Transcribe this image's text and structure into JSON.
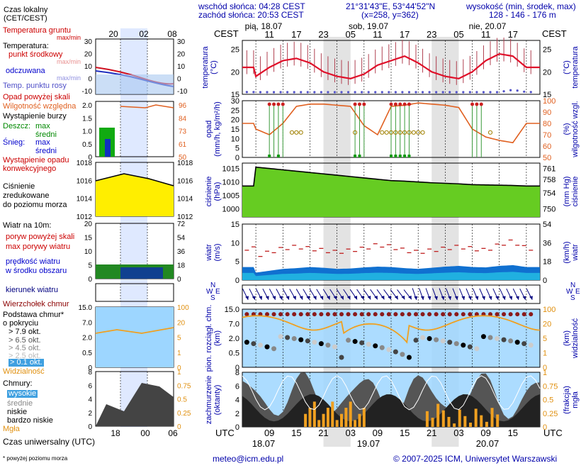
{
  "header": {
    "sunrise": "wschód słońca: 04:28 CEST",
    "sunset": "zachód słońca: 20:53 CEST",
    "coords": "21°31'43\"E, 53°44'52\"N",
    "grid": "(x=258, y=362)",
    "altitude_label": "wysokość (min, środek, max)",
    "altitude_values": "128 - 146 - 176 m"
  },
  "legend": {
    "local_time": "Czas lokalny\n(CET/CEST)",
    "local_ticks": [
      "20",
      "02",
      "08"
    ],
    "temp_ground": "Temperatura gruntu",
    "temp_ground_sub": "max/min",
    "temp": "Temperatura:",
    "temp_mid": "punkt środkowy",
    "temp_minmax": "max/min",
    "temp_felt": "odczuwana",
    "temp_felt_minmax": "max/min",
    "dew": "Temp. punktu rosy",
    "precip_over": "Opad powyżej skali",
    "humidity": "Wilgotność względna",
    "storm": "Wystąpienie burzy",
    "rain": "Deszcz:",
    "rain_max": "max",
    "rain_mid": "średni",
    "snow": "Śnieg:",
    "snow_max": "max",
    "snow_mid": "średni",
    "convective": "Wystąpienie opadu\nkonwekcyjnego",
    "pressure": "Ciśnienie\nzredukowane\ndo poziomu morza",
    "wind_title": "Wiatr na 10m:",
    "gust_over": "poryw powyżej skali",
    "gust_max": "max porywy wiatru",
    "wind_speed": "prędkość wiatru\nw środku obszaru",
    "wind_dir": "kierunek wiatru",
    "cloud_top": "Wierzchołek chmur",
    "cloud_base": "Podstawa chmur*\no pokryciu",
    "oct1": "> 7.9 okt.",
    "oct2": "> 6.5 okt.",
    "oct3": "> 4.5 okt.",
    "oct4": "> 2.5 okt.",
    "oct5": "> 0.1 okt.",
    "visibility": "Widzialność",
    "clouds": "Chmury:",
    "cl_high": "wysokie",
    "cl_mid": "średnie",
    "cl_low": "niskie",
    "cl_vlow": "bardzo niskie",
    "fog": "Mgła",
    "utc": "Czas uniwersalny (UTC)",
    "utc_ticks": [
      "18",
      "00",
      "06"
    ],
    "footnote": "* powyżej poziomu morza",
    "t_axis_l": [
      "30",
      "20",
      "10",
      "0",
      "-10"
    ],
    "t_axis_r": [
      "30",
      "20",
      "10",
      "0",
      "-10"
    ],
    "p_axis_l": [
      "2.0",
      "1.5",
      "1.0",
      "0.5",
      "0"
    ],
    "h_axis_r": [
      "96",
      "84",
      "73",
      "61",
      "50"
    ],
    "pr_axis_l": [
      "1018",
      "1016",
      "1014",
      "1012"
    ],
    "pr_axis_r": [
      "1018",
      "1016",
      "1014",
      "1012"
    ],
    "w_axis_l": [
      "20",
      "15",
      "10",
      "5",
      "0"
    ],
    "w_axis_r": [
      "72",
      "54",
      "36",
      "18",
      "0"
    ],
    "cb_axis_l": [
      "15.0",
      "7.0",
      "2.0",
      "0.5",
      "0"
    ],
    "cb_axis_r": [
      "100",
      "20",
      "5",
      "1",
      "0"
    ],
    "cl_axis_l": [
      "8",
      "6",
      "4",
      "2",
      "0"
    ],
    "cl_axis_r": [
      "1",
      "0.75",
      "0.5",
      "0.25",
      "0"
    ]
  },
  "main": {
    "days": [
      "pią, 18.07",
      "sob, 19.07",
      "nie, 20.07"
    ],
    "cest_label": "CEST",
    "cest_ticks": [
      "11",
      "17",
      "23",
      "05",
      "11",
      "17",
      "23",
      "05",
      "11",
      "17"
    ],
    "utc_label": "UTC",
    "utc_ticks": [
      "09",
      "15",
      "21",
      "03",
      "09",
      "15",
      "21",
      "03",
      "09",
      "15"
    ],
    "utc_dates": [
      "18.07",
      "19.07",
      "20.07"
    ],
    "temp_ylabel": "temperatura\n(°C)",
    "temp_yl": [
      "25",
      "20",
      "15"
    ],
    "temp_yr": [
      "25",
      "20",
      "15"
    ],
    "temp_ylabel_r": "(°C)\ntemperatura",
    "precip_ylabel": "opad\n(mm/h, kg/m²/h)",
    "precip_yl": [
      "30",
      "25",
      "20",
      "15",
      "10",
      "5",
      "0"
    ],
    "hum_yr": [
      "100",
      "90",
      "80",
      "70",
      "60",
      "50"
    ],
    "hum_ylabel": "(%)\nwilgotność wzgl.",
    "press_ylabel": "ciśnienie\n(hPa)",
    "press_yl": [
      "1015",
      "1010",
      "1005",
      "1000"
    ],
    "press_yr": [
      "761",
      "758",
      "754",
      "750"
    ],
    "press_ylabel_r": "(mm Hg)\nciśnienie",
    "wind_ylabel": "wiatr\n(m/s)",
    "wind_yl": [
      "15",
      "10",
      "5",
      "0"
    ],
    "wind_yr": [
      "54",
      "36",
      "18",
      "0"
    ],
    "wind_ylabel_r": "(km/h)\nwiatr",
    "compass": [
      "N",
      "W",
      "E",
      "S"
    ],
    "cb_ylabel": "pion. rozciągł. chm.\n(km)",
    "cb_yl": [
      "15.0",
      "7.0",
      "2.0",
      "0.5",
      "0"
    ],
    "cb_yr": [
      "100",
      "20",
      "5",
      "1",
      "0"
    ],
    "cb_ylabel_r": "(km)\nwidzialność",
    "cl_ylabel": "zachmurzenie\n(oktanty)",
    "cl_yl": [
      "8",
      "6",
      "4",
      "2",
      "0"
    ],
    "cl_yr": [
      "1",
      "0.75",
      "0.5",
      "0.25",
      "0"
    ],
    "cl_ylabel_r": "(frakcja)\nmgła"
  },
  "footer": {
    "email": "meteo@icm.edu.pl",
    "copyright": "© 2007-2025 ICM, Uniwersytet Warszawski"
  },
  "colors": {
    "temperature": "#e0102a",
    "dew_point": "#5050c8",
    "humidity": "#e06020",
    "pressure_fill": "#66cc22",
    "wind_fill": "#1070d0",
    "wind_core": "#20b0e0",
    "gust": "#c02020",
    "night": "#e3e3e3",
    "sky": "#9dd6ff",
    "fog": "#f0a020"
  },
  "chart_data": {
    "type": "line",
    "x_hours_utc": [
      6,
      9,
      12,
      15,
      18,
      21,
      24,
      27,
      30,
      33,
      36,
      39,
      42,
      45,
      48,
      51,
      54,
      57,
      60,
      63,
      66
    ],
    "x_tick_labels": [
      "09",
      "15",
      "21",
      "03",
      "09",
      "15",
      "21",
      "03",
      "09",
      "15"
    ],
    "series": [
      {
        "name": "temperatura",
        "values": [
          19,
          21,
          22.5,
          23,
          22,
          20,
          19,
          18.5,
          19.5,
          21.5,
          22.5,
          23.5,
          22,
          20,
          19,
          18.5,
          20,
          22.5,
          24,
          23.5,
          21
        ]
      },
      {
        "name": "temp. punktu rosy",
        "values": [
          13,
          13.5,
          14,
          14.5,
          15,
          15,
          14.5,
          14,
          14,
          14.5,
          15,
          15.5,
          16,
          15.5,
          15,
          14.5,
          15,
          15.5,
          16,
          16.5,
          16
        ]
      },
      {
        "name": "wilgotność względna",
        "values": [
          75,
          70,
          80,
          95,
          97,
          97,
          96,
          95,
          78,
          70,
          95,
          96,
          98,
          97,
          96,
          94,
          75,
          68,
          65,
          63,
          80
        ]
      },
      {
        "name": "ciśnienie",
        "values": [
          1013,
          1012.5,
          1012,
          1011.5,
          1011,
          1010.5,
          1010,
          1009.5,
          1009,
          1008.5,
          1008,
          1007.8,
          1007.5,
          1007.2,
          1007,
          1006.8,
          1006.5,
          1006.4,
          1006.3,
          1006.2,
          1006
        ]
      },
      {
        "name": "prędkość wiatru",
        "values": [
          2,
          2.5,
          3,
          3.2,
          3.5,
          3.3,
          3,
          3.1,
          3.4,
          3.6,
          3.5,
          3.2,
          3,
          3.3,
          3.6,
          3.8,
          3.5,
          3.4,
          3.8,
          4,
          3.5
        ]
      },
      {
        "name": "max porywy wiatru",
        "values": [
          6,
          7,
          8,
          8.5,
          8,
          7.5,
          7,
          7.5,
          8,
          9,
          8.5,
          7.5,
          7,
          7.5,
          8,
          8.5,
          8,
          7.5,
          9,
          10,
          8
        ]
      }
    ],
    "ylim_temperature": [
      15,
      27
    ],
    "ylim_precip": [
      0,
      30
    ],
    "ylim_humidity": [
      50,
      100
    ],
    "ylim_pressure": [
      997,
      1017
    ],
    "ylim_wind": [
      0,
      15
    ]
  }
}
